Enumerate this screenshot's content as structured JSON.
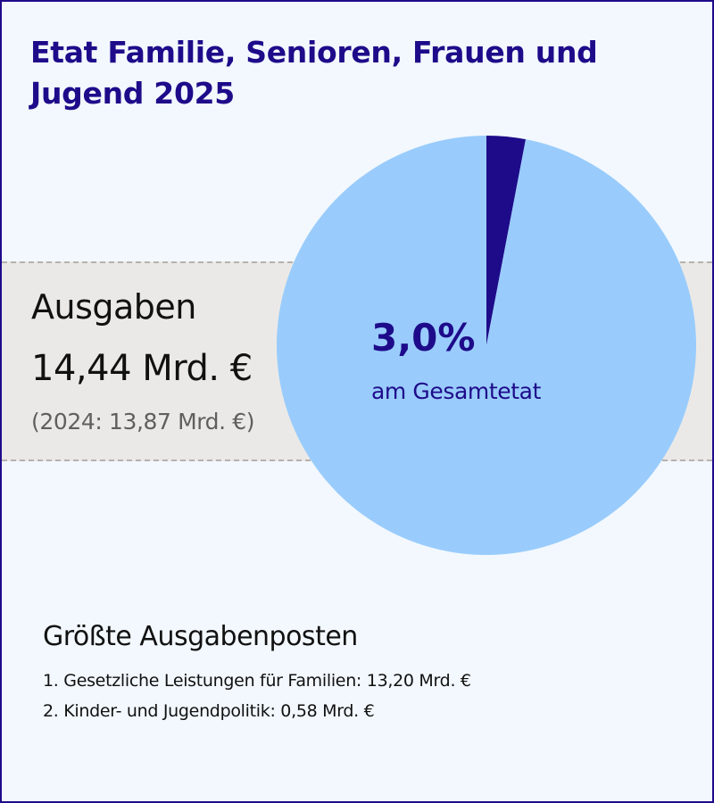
{
  "header": {
    "title": "Etat Familie, Senioren, Frauen und Jugend 2025"
  },
  "summary": {
    "label": "Ausgaben",
    "amount": "14,44 Mrd. €",
    "previous": "(2024: 13,87 Mrd. €)"
  },
  "chart_data": {
    "type": "pie",
    "title": "Etat Familie, Senioren, Frauen und Jugend 2025",
    "categories": [
      "",
      ""
    ],
    "values": [
      3.0,
      97.0
    ],
    "colors": [
      "#1e0b8a",
      "#99ccfc"
    ],
    "annotation": {
      "value_label": "3,0%",
      "text": "am Gesamtetat"
    }
  },
  "posts": {
    "title": "Größte Ausgabenposten",
    "items": [
      "1. Gesetzliche Leistungen für Familien: 13,20 Mrd. €",
      "2. Kinder- und Jugendpolitik: 0,58 Mrd. €"
    ]
  }
}
